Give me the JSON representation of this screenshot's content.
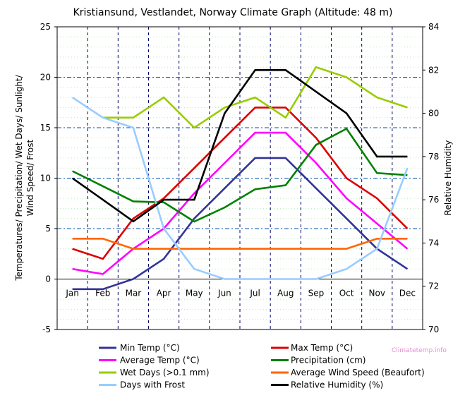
{
  "chart_data": {
    "type": "line",
    "title": "Kristiansund, Vestlandet, Norway Climate Graph (Altitude: 48 m)",
    "ylabel_left": [
      "Temperatures/ Precipitation/ Wet Days/ Sunlight/",
      "Wind Speed/ Frost"
    ],
    "ylabel_right": "Relative Humidity",
    "categories": [
      "Jan",
      "Feb",
      "Mar",
      "Apr",
      "May",
      "Jun",
      "Jul",
      "Aug",
      "Sep",
      "Oct",
      "Nov",
      "Dec"
    ],
    "ylim_left": [
      -5,
      25
    ],
    "yticks_left": [
      -5,
      0,
      5,
      10,
      15,
      20,
      25
    ],
    "ylim_right": [
      70,
      84
    ],
    "yticks_right": [
      70,
      72,
      74,
      76,
      78,
      80,
      82,
      84
    ],
    "grid": true,
    "legend_placement": "bottom",
    "series": [
      {
        "name": "Min Temp (°C)",
        "color": "#333399",
        "axis": "left",
        "values": [
          -1,
          -1,
          0,
          2,
          6,
          9,
          12,
          12,
          9,
          6,
          3,
          1
        ]
      },
      {
        "name": "Max Temp (°C)",
        "color": "#dd0000",
        "axis": "left",
        "values": [
          3,
          2,
          6,
          8,
          11,
          14,
          17,
          17,
          14,
          10,
          8,
          5
        ]
      },
      {
        "name": "Average Temp (°C)",
        "color": "#ff00ff",
        "axis": "left",
        "values": [
          1,
          0.5,
          3,
          5,
          8.5,
          11.5,
          14.5,
          14.5,
          11.5,
          8,
          5.5,
          3
        ]
      },
      {
        "name": "Precipitation (cm)",
        "color": "#008000",
        "axis": "left",
        "values": [
          10.7,
          9.2,
          7.7,
          7.6,
          5.7,
          7.1,
          8.9,
          9.3,
          13.3,
          14.9,
          10.5,
          10.3
        ]
      },
      {
        "name": "Wet Days (>0.1 mm)",
        "color": "#99cc00",
        "axis": "left",
        "values": [
          null,
          16,
          16,
          18,
          15,
          17,
          18,
          16,
          21,
          20,
          18,
          17
        ]
      },
      {
        "name": "Average Wind Speed (Beaufort)",
        "color": "#ff6600",
        "axis": "left",
        "values": [
          4,
          4,
          3,
          3,
          3,
          3,
          3,
          3,
          3,
          3,
          4,
          4
        ]
      },
      {
        "name": "Days with Frost",
        "color": "#99ccff",
        "axis": "left",
        "values": [
          18,
          16,
          15,
          5,
          1,
          0,
          0,
          0,
          0,
          1,
          3,
          11
        ]
      },
      {
        "name": "Relative Humidity (%)",
        "color": "#000000",
        "axis": "right",
        "values": [
          77,
          76,
          75,
          76,
          76,
          80,
          82,
          82,
          81,
          80,
          78,
          78
        ]
      }
    ],
    "watermark": "Climatetemp.info"
  }
}
